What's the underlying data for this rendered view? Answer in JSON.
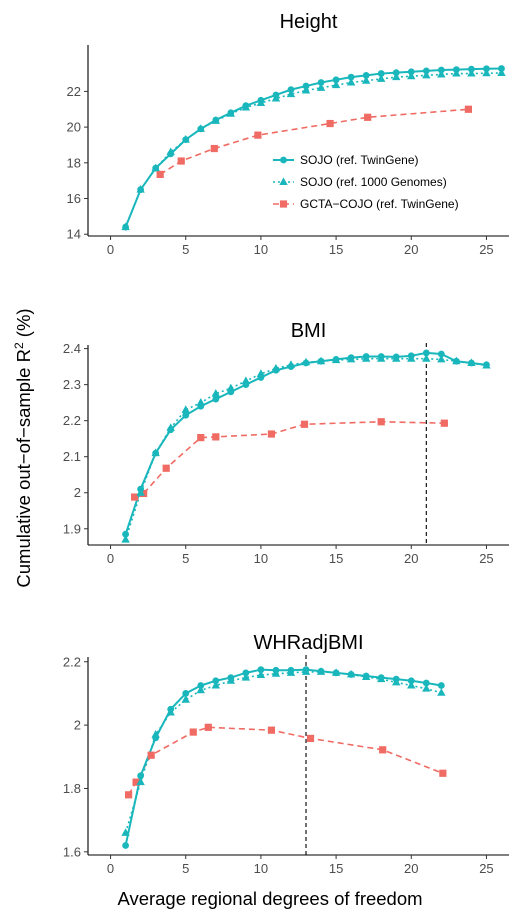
{
  "figure": {
    "ylabel_main": "Cumulative out−of−sample R",
    "ylabel_sup": "2",
    "ylabel_unit": " (%)",
    "xlabel": "Average regional degrees of freedom",
    "colors": {
      "teal": "#19b7bc",
      "salmon": "#f06b63"
    }
  },
  "chart_data": [
    {
      "type": "line",
      "title": "Height",
      "xlim": [
        -1.5,
        26.5
      ],
      "ylim": [
        13.9,
        24.6
      ],
      "xticks": [
        0,
        5,
        10,
        15,
        20,
        25
      ],
      "yticks": [
        14,
        16,
        18,
        20,
        22
      ],
      "legend": {
        "position": "inside-right"
      },
      "vline": null,
      "series": [
        {
          "name": "SOJO (ref. TwinGene)",
          "marker": "circle",
          "color": "#19b7bc",
          "line": "solid",
          "points": [
            [
              1,
              14.4
            ],
            [
              2,
              16.5
            ],
            [
              3,
              17.7
            ],
            [
              4,
              18.5
            ],
            [
              5,
              19.3
            ],
            [
              6,
              19.9
            ],
            [
              7,
              20.4
            ],
            [
              8,
              20.8
            ],
            [
              9,
              21.2
            ],
            [
              10,
              21.5
            ],
            [
              11,
              21.8
            ],
            [
              12,
              22.1
            ],
            [
              13,
              22.3
            ],
            [
              14,
              22.5
            ],
            [
              15,
              22.65
            ],
            [
              16,
              22.8
            ],
            [
              17,
              22.9
            ],
            [
              18,
              23.0
            ],
            [
              19,
              23.05
            ],
            [
              20,
              23.1
            ],
            [
              21,
              23.15
            ],
            [
              22,
              23.2
            ],
            [
              23,
              23.22
            ],
            [
              24,
              23.25
            ],
            [
              25,
              23.27
            ],
            [
              26,
              23.28
            ]
          ]
        },
        {
          "name": "SOJO (ref. 1000 Genomes)",
          "marker": "triangle",
          "color": "#19b7bc",
          "line": "dotted",
          "points": [
            [
              1,
              14.4
            ],
            [
              2,
              16.5
            ],
            [
              3,
              17.7
            ],
            [
              4,
              18.6
            ],
            [
              5,
              19.3
            ],
            [
              6,
              19.9
            ],
            [
              7,
              20.35
            ],
            [
              8,
              20.75
            ],
            [
              9,
              21.1
            ],
            [
              10,
              21.35
            ],
            [
              11,
              21.6
            ],
            [
              12,
              21.85
            ],
            [
              13,
              22.05
            ],
            [
              14,
              22.2
            ],
            [
              15,
              22.35
            ],
            [
              16,
              22.5
            ],
            [
              17,
              22.6
            ],
            [
              18,
              22.7
            ],
            [
              19,
              22.8
            ],
            [
              20,
              22.85
            ],
            [
              21,
              22.9
            ],
            [
              22,
              22.95
            ],
            [
              23,
              23.0
            ],
            [
              24,
              23.0
            ],
            [
              25,
              23.02
            ],
            [
              26,
              23.03
            ]
          ]
        },
        {
          "name": "GCTA−COJO (ref. TwinGene)",
          "marker": "square",
          "color": "#f06b63",
          "line": "dashed",
          "points": [
            [
              3.3,
              17.35
            ],
            [
              4.7,
              18.1
            ],
            [
              6.9,
              18.8
            ],
            [
              9.8,
              19.55
            ],
            [
              14.6,
              20.2
            ],
            [
              17.1,
              20.55
            ],
            [
              23.8,
              21.0
            ]
          ]
        }
      ]
    },
    {
      "type": "line",
      "title": "BMI",
      "xlim": [
        -1.5,
        26.5
      ],
      "ylim": [
        1.855,
        2.41
      ],
      "xticks": [
        0,
        5,
        10,
        15,
        20,
        25
      ],
      "yticks": [
        1.9,
        2.0,
        2.1,
        2.2,
        2.3,
        2.4
      ],
      "vline": 21,
      "series": [
        {
          "name": "SOJO (ref. TwinGene)",
          "marker": "circle",
          "color": "#19b7bc",
          "line": "solid",
          "points": [
            [
              1,
              1.885
            ],
            [
              2,
              2.01
            ],
            [
              3,
              2.11
            ],
            [
              4,
              2.175
            ],
            [
              5,
              2.215
            ],
            [
              6,
              2.24
            ],
            [
              7,
              2.26
            ],
            [
              8,
              2.28
            ],
            [
              9,
              2.3
            ],
            [
              10,
              2.32
            ],
            [
              11,
              2.34
            ],
            [
              12,
              2.35
            ],
            [
              13,
              2.36
            ],
            [
              14,
              2.365
            ],
            [
              15,
              2.37
            ],
            [
              16,
              2.375
            ],
            [
              17,
              2.378
            ],
            [
              18,
              2.378
            ],
            [
              19,
              2.377
            ],
            [
              20,
              2.38
            ],
            [
              21,
              2.388
            ],
            [
              22,
              2.385
            ],
            [
              23,
              2.365
            ],
            [
              24,
              2.36
            ],
            [
              25,
              2.355
            ]
          ]
        },
        {
          "name": "SOJO (ref. 1000 Genomes)",
          "marker": "triangle",
          "color": "#19b7bc",
          "line": "dotted",
          "points": [
            [
              1,
              1.87
            ],
            [
              2,
              2.0
            ],
            [
              3,
              2.11
            ],
            [
              4,
              2.18
            ],
            [
              5,
              2.23
            ],
            [
              6,
              2.25
            ],
            [
              7,
              2.275
            ],
            [
              8,
              2.29
            ],
            [
              9,
              2.31
            ],
            [
              10,
              2.33
            ],
            [
              11,
              2.345
            ],
            [
              12,
              2.355
            ],
            [
              13,
              2.362
            ],
            [
              14,
              2.365
            ],
            [
              15,
              2.368
            ],
            [
              16,
              2.37
            ],
            [
              17,
              2.372
            ],
            [
              18,
              2.372
            ],
            [
              19,
              2.372
            ],
            [
              20,
              2.372
            ],
            [
              21,
              2.372
            ],
            [
              22,
              2.37
            ],
            [
              23,
              2.365
            ],
            [
              24,
              2.36
            ],
            [
              25,
              2.353
            ]
          ]
        },
        {
          "name": "GCTA−COJO (ref. TwinGene)",
          "marker": "square",
          "color": "#f06b63",
          "line": "dashed",
          "points": [
            [
              1.6,
              1.988
            ],
            [
              2.2,
              1.998
            ],
            [
              3.7,
              2.068
            ],
            [
              6.0,
              2.153
            ],
            [
              7.0,
              2.155
            ],
            [
              10.7,
              2.163
            ],
            [
              12.9,
              2.19
            ],
            [
              18.0,
              2.197
            ],
            [
              22.2,
              2.193
            ]
          ]
        }
      ]
    },
    {
      "type": "line",
      "title": "WHRadjBMI",
      "xlim": [
        -1.5,
        26.5
      ],
      "ylim": [
        1.59,
        2.215
      ],
      "xticks": [
        0,
        5,
        10,
        15,
        20,
        25
      ],
      "yticks": [
        1.6,
        1.8,
        2.0,
        2.2
      ],
      "vline": 13,
      "series": [
        {
          "name": "SOJO (ref. TwinGene)",
          "marker": "circle",
          "color": "#19b7bc",
          "line": "solid",
          "points": [
            [
              1,
              1.62
            ],
            [
              2,
              1.84
            ],
            [
              3,
              1.96
            ],
            [
              4,
              2.05
            ],
            [
              5,
              2.1
            ],
            [
              6,
              2.125
            ],
            [
              7,
              2.14
            ],
            [
              8,
              2.15
            ],
            [
              9,
              2.165
            ],
            [
              10,
              2.175
            ],
            [
              11,
              2.173
            ],
            [
              12,
              2.173
            ],
            [
              13,
              2.175
            ],
            [
              14,
              2.17
            ],
            [
              15,
              2.165
            ],
            [
              16,
              2.16
            ],
            [
              17,
              2.155
            ],
            [
              18,
              2.15
            ],
            [
              19,
              2.145
            ],
            [
              20,
              2.14
            ],
            [
              21,
              2.133
            ],
            [
              22,
              2.125
            ]
          ]
        },
        {
          "name": "SOJO (ref. 1000 Genomes)",
          "marker": "triangle",
          "color": "#19b7bc",
          "line": "dotted",
          "points": [
            [
              1,
              1.66
            ],
            [
              2,
              1.82
            ],
            [
              3,
              1.97
            ],
            [
              4,
              2.04
            ],
            [
              5,
              2.08
            ],
            [
              6,
              2.11
            ],
            [
              7,
              2.125
            ],
            [
              8,
              2.14
            ],
            [
              9,
              2.15
            ],
            [
              10,
              2.158
            ],
            [
              11,
              2.162
            ],
            [
              12,
              2.165
            ],
            [
              13,
              2.168
            ],
            [
              14,
              2.168
            ],
            [
              15,
              2.165
            ],
            [
              16,
              2.16
            ],
            [
              17,
              2.152
            ],
            [
              18,
              2.145
            ],
            [
              19,
              2.135
            ],
            [
              20,
              2.125
            ],
            [
              21,
              2.115
            ],
            [
              22,
              2.102
            ]
          ]
        },
        {
          "name": "GCTA−COJO (ref. TwinGene)",
          "marker": "square",
          "color": "#f06b63",
          "line": "dashed",
          "points": [
            [
              1.2,
              1.78
            ],
            [
              1.7,
              1.82
            ],
            [
              2.7,
              1.905
            ],
            [
              5.5,
              1.978
            ],
            [
              6.5,
              1.993
            ],
            [
              10.7,
              1.984
            ],
            [
              13.3,
              1.958
            ],
            [
              18.1,
              1.922
            ],
            [
              22.1,
              1.848
            ]
          ]
        }
      ]
    }
  ]
}
